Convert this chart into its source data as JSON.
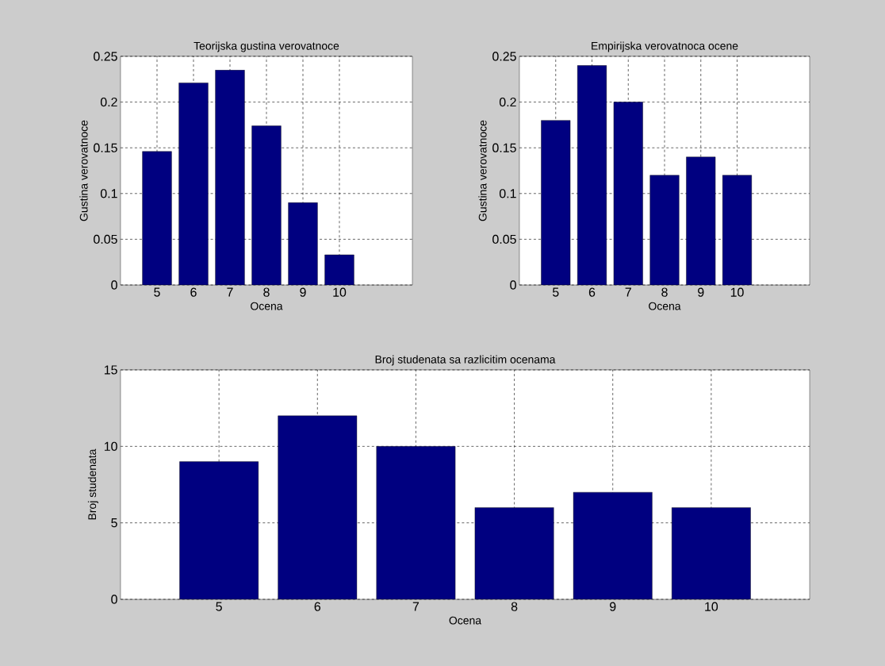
{
  "chart_data": [
    {
      "type": "bar",
      "title": "Teorijska gustina verovatnoce",
      "xlabel": "Ocena",
      "ylabel": "Gustina verovatnoce",
      "x": [
        5,
        6,
        7,
        8,
        9,
        10
      ],
      "values": [
        0.146,
        0.221,
        0.235,
        0.174,
        0.09,
        0.033
      ],
      "color": "#000080",
      "xlim": [
        4,
        12
      ],
      "ylim": [
        0,
        0.25
      ],
      "xticks": [
        5,
        6,
        7,
        8,
        9,
        10
      ],
      "yticks": [
        0,
        0.05,
        0.1,
        0.15,
        0.2,
        0.25
      ],
      "grid": true
    },
    {
      "type": "bar",
      "title": "Empirijska verovatnoca ocene",
      "xlabel": "Ocena",
      "ylabel": "Gustina verovatnoce",
      "x": [
        5,
        6,
        7,
        8,
        9,
        10
      ],
      "values": [
        0.18,
        0.24,
        0.2,
        0.12,
        0.14,
        0.12
      ],
      "color": "#000080",
      "xlim": [
        4,
        12
      ],
      "ylim": [
        0,
        0.25
      ],
      "xticks": [
        5,
        6,
        7,
        8,
        9,
        10
      ],
      "yticks": [
        0,
        0.05,
        0.1,
        0.15,
        0.2,
        0.25
      ],
      "grid": true
    },
    {
      "type": "bar",
      "title": "Broj studenata sa razlicitim ocenama",
      "xlabel": "Ocena",
      "ylabel": "Broj studenata",
      "x": [
        5,
        6,
        7,
        8,
        9,
        10
      ],
      "values": [
        9,
        12,
        10,
        6,
        7,
        6
      ],
      "color": "#000080",
      "xlim": [
        4,
        11
      ],
      "ylim": [
        0,
        15
      ],
      "xticks": [
        5,
        6,
        7,
        8,
        9,
        10
      ],
      "yticks": [
        0,
        5,
        10,
        15
      ],
      "grid": true
    }
  ]
}
